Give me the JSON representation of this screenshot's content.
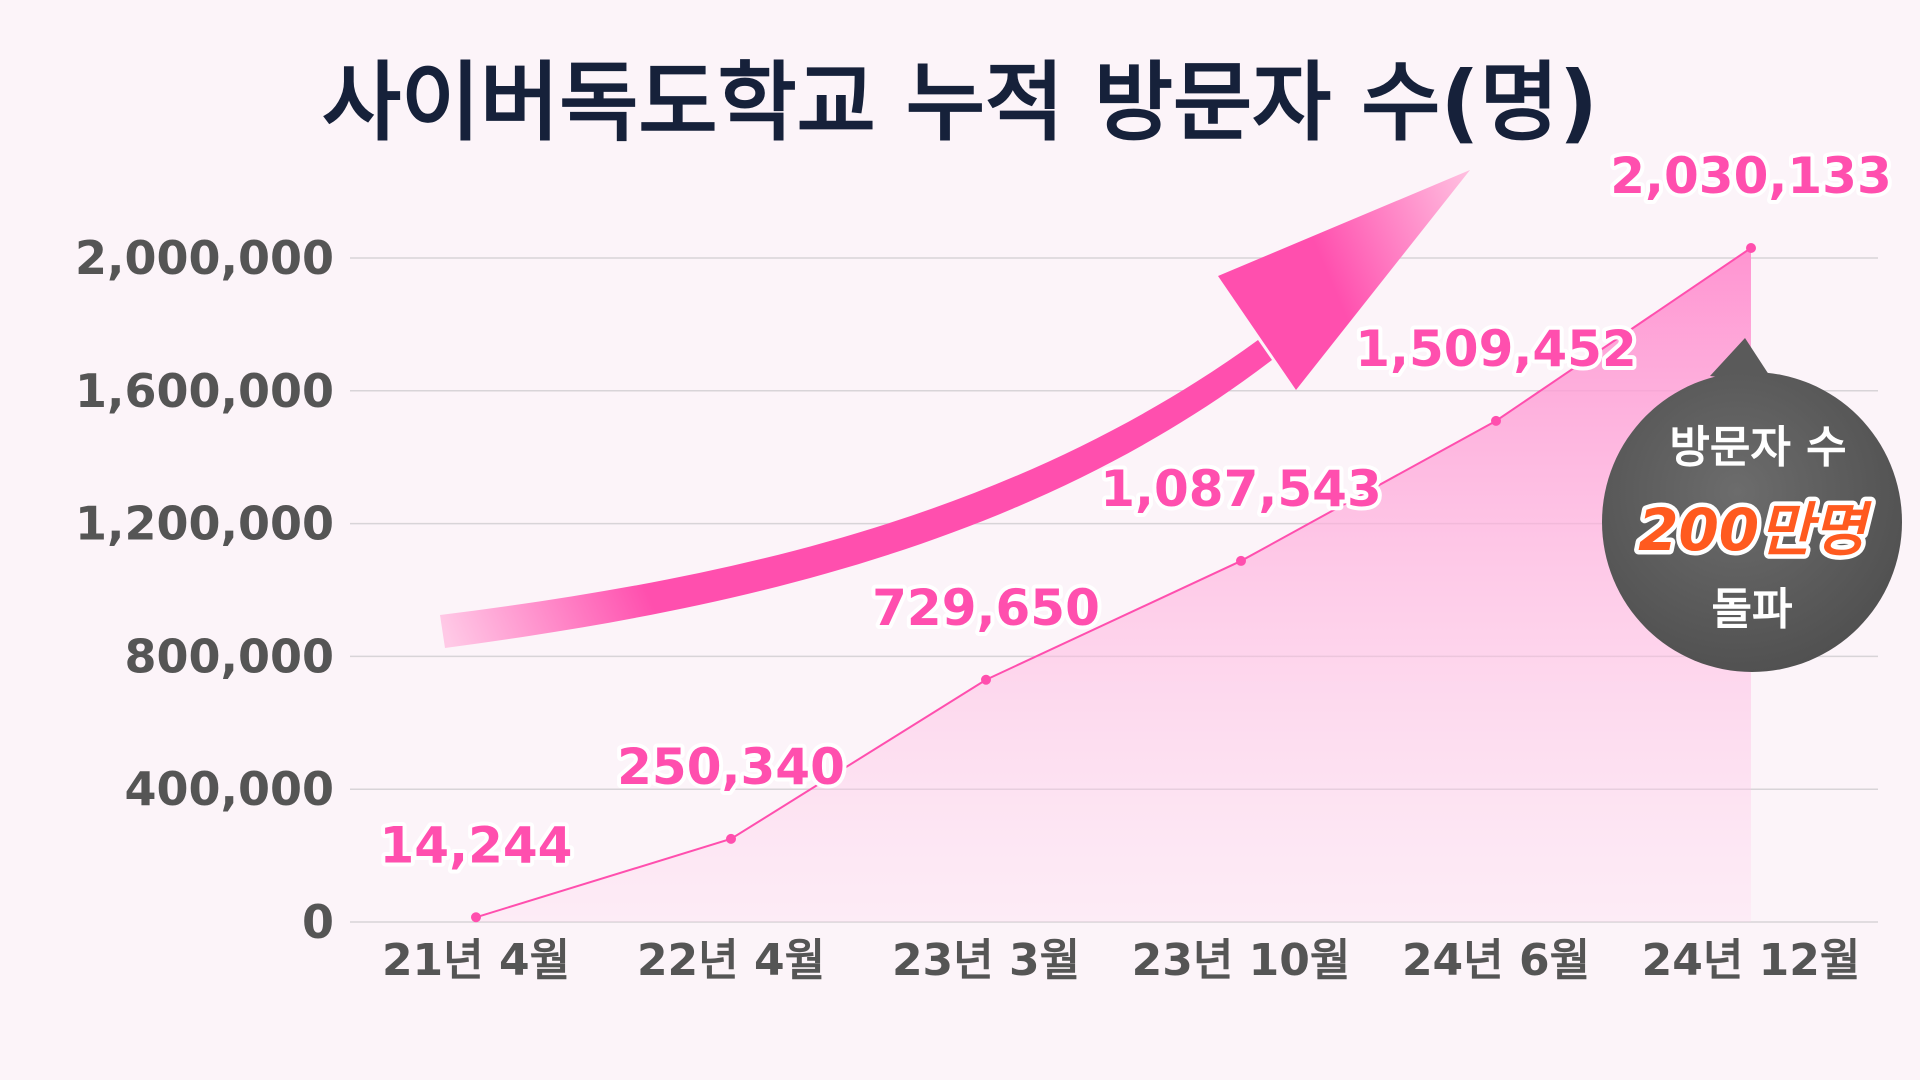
{
  "chart_data": {
    "type": "area",
    "title": "사이버독도학교 누적 방문자 수(명)",
    "categories": [
      "21년 4월",
      "22년 4월",
      "23년 3월",
      "23년 10월",
      "24년 6월",
      "24년 12월"
    ],
    "values": [
      14244,
      250340,
      729650,
      1087543,
      1509452,
      2030133
    ],
    "value_labels": [
      "14,244",
      "250,340",
      "729,650",
      "1,087,543",
      "1,509,452",
      "2,030,133"
    ],
    "ylim": [
      0,
      2000000
    ],
    "yticks": [
      0,
      400000,
      800000,
      1200000,
      1600000,
      2000000
    ],
    "ytick_labels": [
      "0",
      "400,000",
      "800,000",
      "1,200,000",
      "1,600,000",
      "2,000,000"
    ],
    "grid": true,
    "legend": "none",
    "colors": {
      "line": "#ff4fae",
      "area": "#ff8fcf",
      "arrow": "#ff4fae",
      "badge": "#5e5e5e",
      "badge_highlight": "#ff5a1f",
      "title": "#16213a",
      "tick": "#555555"
    }
  },
  "badge": {
    "line1": "방문자 수",
    "line2": "200만명",
    "line3": "돌파"
  },
  "decoration": {
    "arrow_icon": "trend-up-arrow-icon"
  }
}
